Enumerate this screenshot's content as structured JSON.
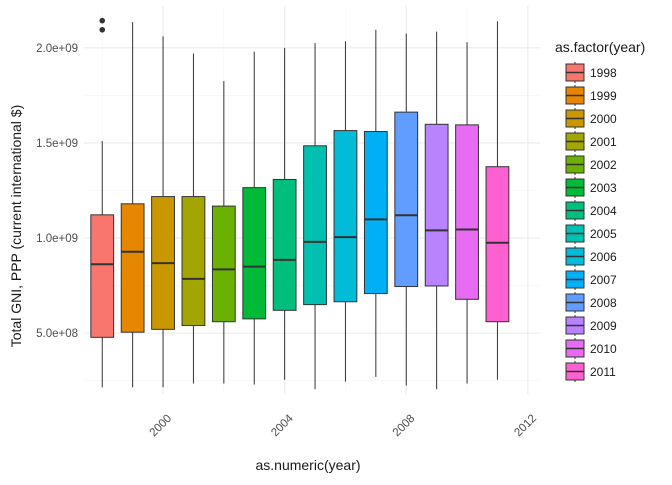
{
  "chart_data": {
    "type": "boxplot",
    "xlabel": "as.numeric(year)",
    "ylabel": "Total GNI, PPP (current international $)",
    "xlim": [
      1997.4,
      2012.4
    ],
    "ylim": [
      180000000,
      2220000000
    ],
    "x_ticks": [
      2000,
      2004,
      2008,
      2012
    ],
    "x_tick_labels": [
      "2000",
      "2004",
      "2008",
      "2012"
    ],
    "y_ticks": [
      500000000,
      1000000000,
      1500000000,
      2000000000
    ],
    "y_tick_labels": [
      "5.0e+08",
      "1.0e+09",
      "1.5e+09",
      "2.0e+09"
    ],
    "grid": true,
    "legend": {
      "title": "as.factor(year)",
      "position": "right"
    },
    "series": [
      {
        "name": "1998",
        "x": 1998,
        "color": "#F8766D",
        "min": 215000000,
        "q1": 478000000,
        "median": 862000000,
        "q3": 1122000000,
        "max": 1510000000,
        "outliers": [
          2095000000,
          2143000000
        ]
      },
      {
        "name": "1999",
        "x": 1999,
        "color": "#E58700",
        "min": 215000000,
        "q1": 505000000,
        "median": 928000000,
        "q3": 1180000000,
        "max": 2135000000,
        "outliers": []
      },
      {
        "name": "2000",
        "x": 2000,
        "color": "#C99800",
        "min": 215000000,
        "q1": 520000000,
        "median": 868000000,
        "q3": 1218000000,
        "max": 2060000000,
        "outliers": []
      },
      {
        "name": "2001",
        "x": 2001,
        "color": "#A3A500",
        "min": 235000000,
        "q1": 540000000,
        "median": 785000000,
        "q3": 1218000000,
        "max": 1970000000,
        "outliers": []
      },
      {
        "name": "2002",
        "x": 2002,
        "color": "#6BB100",
        "min": 235000000,
        "q1": 560000000,
        "median": 835000000,
        "q3": 1168000000,
        "max": 1825000000,
        "outliers": []
      },
      {
        "name": "2003",
        "x": 2003,
        "color": "#00BA38",
        "min": 230000000,
        "q1": 575000000,
        "median": 850000000,
        "q3": 1265000000,
        "max": 1980000000,
        "outliers": []
      },
      {
        "name": "2004",
        "x": 2004,
        "color": "#00BF7D",
        "min": 255000000,
        "q1": 620000000,
        "median": 885000000,
        "q3": 1308000000,
        "max": 2000000000,
        "outliers": []
      },
      {
        "name": "2005",
        "x": 2005,
        "color": "#00C0AF",
        "min": 205000000,
        "q1": 650000000,
        "median": 980000000,
        "q3": 1485000000,
        "max": 2025000000,
        "outliers": []
      },
      {
        "name": "2006",
        "x": 2006,
        "color": "#00BCD8",
        "min": 245000000,
        "q1": 665000000,
        "median": 1005000000,
        "q3": 1565000000,
        "max": 2035000000,
        "outliers": []
      },
      {
        "name": "2007",
        "x": 2007,
        "color": "#00B0F6",
        "min": 270000000,
        "q1": 708000000,
        "median": 1098000000,
        "q3": 1560000000,
        "max": 2095000000,
        "outliers": []
      },
      {
        "name": "2008",
        "x": 2008,
        "color": "#619CFF",
        "min": 225000000,
        "q1": 745000000,
        "median": 1120000000,
        "q3": 1662000000,
        "max": 2075000000,
        "outliers": []
      },
      {
        "name": "2009",
        "x": 2009,
        "color": "#B983FF",
        "min": 205000000,
        "q1": 748000000,
        "median": 1040000000,
        "q3": 1598000000,
        "max": 2085000000,
        "outliers": []
      },
      {
        "name": "2010",
        "x": 2010,
        "color": "#E76BF3",
        "min": 235000000,
        "q1": 678000000,
        "median": 1045000000,
        "q3": 1595000000,
        "max": 2030000000,
        "outliers": []
      },
      {
        "name": "2011",
        "x": 2011,
        "color": "#FD61D1",
        "min": 255000000,
        "q1": 560000000,
        "median": 975000000,
        "q3": 1375000000,
        "max": 2140000000,
        "outliers": []
      }
    ],
    "colors": {
      "grid_major": "#EBEBEB",
      "grid_minor": "#F5F5F5",
      "text": "#1A1A1A",
      "tick_text": "#4D4D4D",
      "box_stroke": "#333333"
    }
  }
}
